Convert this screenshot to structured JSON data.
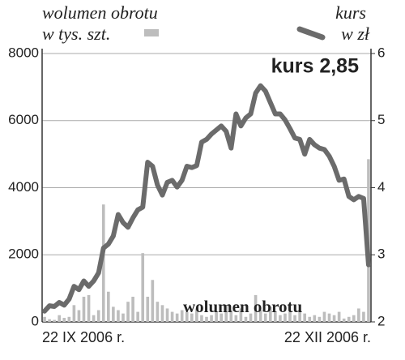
{
  "chart_data": {
    "type": "bar_line",
    "categories": [
      "22 IX 2006 r.",
      null,
      null,
      null,
      null,
      null,
      null,
      null,
      null,
      null,
      null,
      null,
      null,
      null,
      null,
      null,
      null,
      null,
      null,
      null,
      null,
      null,
      null,
      null,
      null,
      null,
      null,
      null,
      null,
      null,
      null,
      null,
      null,
      null,
      null,
      null,
      null,
      null,
      null,
      null,
      null,
      null,
      null,
      null,
      null,
      null,
      null,
      null,
      null,
      null,
      null,
      null,
      null,
      null,
      null,
      null,
      null,
      null,
      null,
      null,
      null,
      null,
      null,
      null,
      null,
      null,
      "22 XII 2006 r."
    ],
    "series": [
      {
        "name": "wolumen obrotu",
        "unit": "w tys. szt.",
        "type": "bar",
        "color": "#bdbdbd",
        "values": [
          150,
          80,
          60,
          200,
          120,
          150,
          500,
          350,
          750,
          800,
          200,
          350,
          3500,
          900,
          450,
          350,
          250,
          600,
          750,
          300,
          2050,
          750,
          1250,
          600,
          500,
          400,
          300,
          250,
          350,
          300,
          250,
          400,
          200,
          150,
          200,
          300,
          250,
          500,
          350,
          200,
          400,
          150,
          250,
          800,
          350,
          250,
          450,
          300,
          200,
          250,
          300,
          200,
          350,
          250,
          150,
          200,
          150,
          300,
          250,
          200,
          300,
          100,
          150,
          200,
          400,
          300,
          4850
        ]
      },
      {
        "name": "kurs",
        "unit": "w zł",
        "type": "line",
        "axis": "y2",
        "color": "#6b6b6b",
        "values": [
          2.16,
          2.24,
          2.23,
          2.29,
          2.25,
          2.34,
          2.53,
          2.48,
          2.61,
          2.53,
          2.61,
          2.73,
          3.1,
          3.16,
          3.28,
          3.6,
          3.48,
          3.41,
          3.55,
          3.67,
          3.71,
          4.38,
          4.32,
          4.04,
          3.89,
          4.08,
          4.11,
          4.01,
          4.11,
          4.32,
          4.3,
          4.33,
          4.68,
          4.72,
          4.8,
          4.86,
          4.92,
          4.84,
          4.59,
          5.1,
          4.92,
          5.04,
          5.1,
          5.41,
          5.52,
          5.44,
          5.27,
          5.1,
          5.1,
          5.01,
          4.88,
          4.74,
          4.72,
          4.5,
          4.72,
          4.64,
          4.59,
          4.57,
          4.47,
          4.32,
          4.11,
          4.13,
          3.87,
          3.82,
          3.87,
          3.84,
          2.85
        ]
      }
    ],
    "ylim": [
      0,
      8000
    ],
    "yticks": [
      0,
      2000,
      4000,
      6000,
      8000
    ],
    "y2lim": [
      2,
      6
    ],
    "y2ticks": [
      2,
      3,
      4,
      5,
      6
    ],
    "grid": true,
    "annotations": [
      "kurs 2,85",
      "wolumen obrotu"
    ]
  }
}
